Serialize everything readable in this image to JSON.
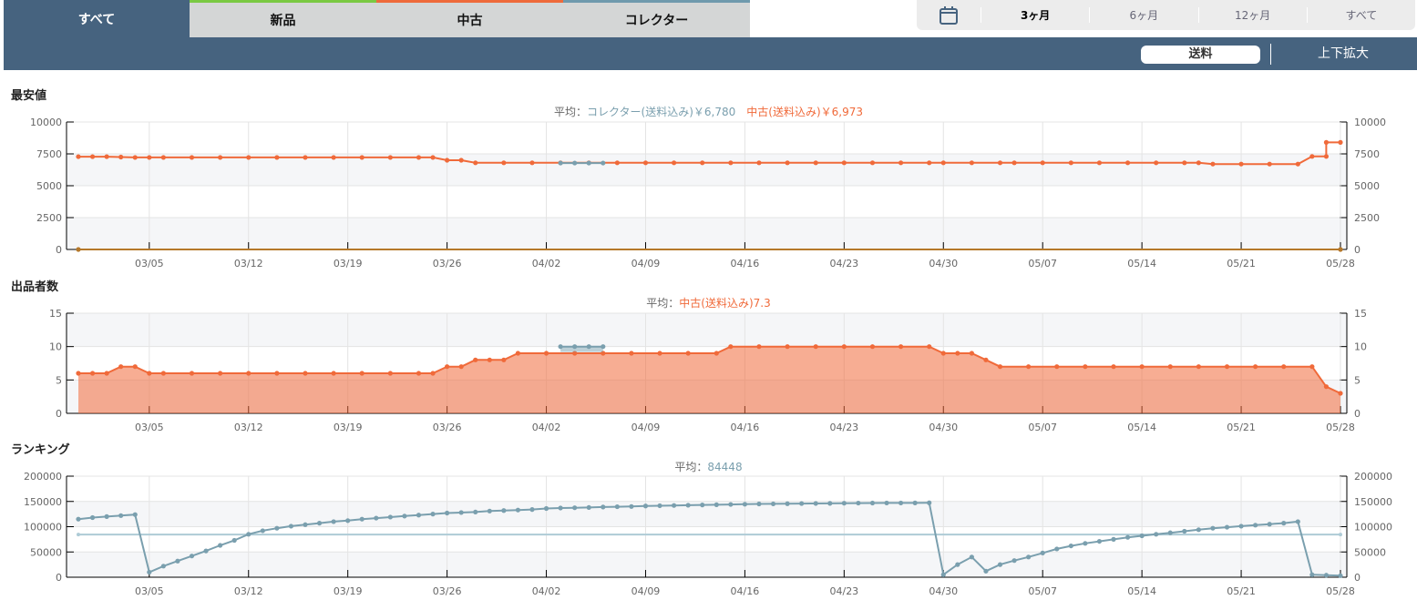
{
  "tabs": [
    {
      "label": "すべて",
      "active": true,
      "accent": ""
    },
    {
      "label": "新品",
      "active": false,
      "accent": "#7ac943"
    },
    {
      "label": "中古",
      "active": false,
      "accent": "#ee6a3b"
    },
    {
      "label": "コレクター",
      "active": false,
      "accent": "#6f9aad"
    }
  ],
  "period": {
    "icon": "calendar-icon",
    "options": [
      "3ヶ月",
      "6ヶ月",
      "12ヶ月",
      "すべて"
    ],
    "selected": "3ヶ月"
  },
  "toolbar": {
    "shipping_label": "送料",
    "zoom_label": "上下拡大"
  },
  "colors": {
    "header": "#46637f",
    "used": "#f06a3a",
    "collector": "#7a9fae",
    "new": "#b5782a"
  },
  "chart_data": [
    {
      "type": "line",
      "title": "最安値",
      "subtitle": {
        "prefix": "平均：",
        "items": [
          {
            "text": "コレクター(送料込み)￥6,780",
            "color": "#7a9fae"
          },
          {
            "text": "中古(送料込み)￥6,973",
            "color": "#f06a3a"
          }
        ]
      },
      "ylim": [
        0,
        10000
      ],
      "yticks": [
        0,
        2500,
        5000,
        7500,
        10000
      ],
      "x_ticks": [
        "03/05",
        "03/12",
        "03/19",
        "03/26",
        "04/02",
        "04/09",
        "04/16",
        "04/23",
        "04/30",
        "05/07",
        "05/14",
        "05/21",
        "05/28"
      ],
      "x_range": [
        "02/28",
        "05/28"
      ],
      "grid": true,
      "series": [
        {
          "key": "new",
          "color": "#b5782a",
          "points": [
            [
              "02/28",
              0
            ],
            [
              "05/28",
              0
            ]
          ]
        },
        {
          "key": "used",
          "color": "#f06a3a",
          "points": [
            [
              "02/28",
              7280
            ],
            [
              "03/01",
              7280
            ],
            [
              "03/02",
              7280
            ],
            [
              "03/03",
              7250
            ],
            [
              "03/04",
              7220
            ],
            [
              "03/05",
              7220
            ],
            [
              "03/06",
              7220
            ],
            [
              "03/08",
              7220
            ],
            [
              "03/10",
              7220
            ],
            [
              "03/12",
              7220
            ],
            [
              "03/14",
              7220
            ],
            [
              "03/16",
              7220
            ],
            [
              "03/18",
              7220
            ],
            [
              "03/20",
              7220
            ],
            [
              "03/22",
              7220
            ],
            [
              "03/24",
              7220
            ],
            [
              "03/25",
              7220
            ],
            [
              "03/26",
              7000
            ],
            [
              "03/27",
              7000
            ],
            [
              "03/28",
              6800
            ],
            [
              "03/30",
              6800
            ],
            [
              "04/01",
              6800
            ],
            [
              "04/03",
              6800
            ],
            [
              "04/05",
              6800
            ],
            [
              "04/07",
              6800
            ],
            [
              "04/09",
              6800
            ],
            [
              "04/11",
              6800
            ],
            [
              "04/13",
              6800
            ],
            [
              "04/15",
              6800
            ],
            [
              "04/17",
              6800
            ],
            [
              "04/19",
              6800
            ],
            [
              "04/21",
              6800
            ],
            [
              "04/23",
              6800
            ],
            [
              "04/25",
              6800
            ],
            [
              "04/27",
              6800
            ],
            [
              "04/29",
              6800
            ],
            [
              "04/30",
              6800
            ],
            [
              "05/02",
              6800
            ],
            [
              "05/04",
              6800
            ],
            [
              "05/05",
              6800
            ],
            [
              "05/07",
              6800
            ],
            [
              "05/09",
              6800
            ],
            [
              "05/11",
              6800
            ],
            [
              "05/13",
              6800
            ],
            [
              "05/15",
              6800
            ],
            [
              "05/17",
              6800
            ],
            [
              "05/18",
              6800
            ],
            [
              "05/19",
              6700
            ],
            [
              "05/21",
              6700
            ],
            [
              "05/23",
              6700
            ],
            [
              "05/25",
              6700
            ],
            [
              "05/26",
              7300
            ],
            [
              "05/27",
              7300
            ],
            [
              "05/27",
              8400
            ],
            [
              "05/28",
              8400
            ]
          ]
        },
        {
          "key": "collector",
          "color": "#7a9fae",
          "points": [
            [
              "04/03",
              6780
            ],
            [
              "04/04",
              6780
            ],
            [
              "04/05",
              6780
            ],
            [
              "04/06",
              6780
            ]
          ]
        }
      ]
    },
    {
      "type": "area",
      "title": "出品者数",
      "subtitle": {
        "prefix": "平均：",
        "items": [
          {
            "text": "中古(送料込み)7.3",
            "color": "#f06a3a"
          }
        ]
      },
      "ylim": [
        0,
        15
      ],
      "yticks": [
        0,
        5,
        10,
        15
      ],
      "x_ticks": [
        "03/05",
        "03/12",
        "03/19",
        "03/26",
        "04/02",
        "04/09",
        "04/16",
        "04/23",
        "04/30",
        "05/07",
        "05/14",
        "05/21",
        "05/28"
      ],
      "x_range": [
        "02/28",
        "05/28"
      ],
      "grid": true,
      "series": [
        {
          "key": "used",
          "color": "#f06a3a",
          "fill": true,
          "points": [
            [
              "02/28",
              6
            ],
            [
              "03/01",
              6
            ],
            [
              "03/02",
              6
            ],
            [
              "03/03",
              7
            ],
            [
              "03/04",
              7
            ],
            [
              "03/05",
              6
            ],
            [
              "03/06",
              6
            ],
            [
              "03/08",
              6
            ],
            [
              "03/10",
              6
            ],
            [
              "03/12",
              6
            ],
            [
              "03/14",
              6
            ],
            [
              "03/16",
              6
            ],
            [
              "03/18",
              6
            ],
            [
              "03/20",
              6
            ],
            [
              "03/22",
              6
            ],
            [
              "03/24",
              6
            ],
            [
              "03/25",
              6
            ],
            [
              "03/26",
              7
            ],
            [
              "03/27",
              7
            ],
            [
              "03/28",
              8
            ],
            [
              "03/29",
              8
            ],
            [
              "03/30",
              8
            ],
            [
              "03/31",
              9
            ],
            [
              "04/02",
              9
            ],
            [
              "04/04",
              9
            ],
            [
              "04/06",
              9
            ],
            [
              "04/08",
              9
            ],
            [
              "04/10",
              9
            ],
            [
              "04/12",
              9
            ],
            [
              "04/14",
              9
            ],
            [
              "04/15",
              10
            ],
            [
              "04/17",
              10
            ],
            [
              "04/19",
              10
            ],
            [
              "04/21",
              10
            ],
            [
              "04/23",
              10
            ],
            [
              "04/25",
              10
            ],
            [
              "04/27",
              10
            ],
            [
              "04/29",
              10
            ],
            [
              "04/30",
              9
            ],
            [
              "05/01",
              9
            ],
            [
              "05/02",
              9
            ],
            [
              "05/03",
              8
            ],
            [
              "05/04",
              7
            ],
            [
              "05/06",
              7
            ],
            [
              "05/08",
              7
            ],
            [
              "05/10",
              7
            ],
            [
              "05/12",
              7
            ],
            [
              "05/14",
              7
            ],
            [
              "05/16",
              7
            ],
            [
              "05/18",
              7
            ],
            [
              "05/20",
              7
            ],
            [
              "05/22",
              7
            ],
            [
              "05/24",
              7
            ],
            [
              "05/26",
              7
            ],
            [
              "05/27",
              4
            ],
            [
              "05/28",
              3
            ]
          ]
        },
        {
          "key": "collector",
          "color": "#7a9fae",
          "fill": false,
          "points": [
            [
              "04/03",
              10
            ],
            [
              "04/04",
              10
            ],
            [
              "04/05",
              10
            ],
            [
              "04/06",
              10
            ]
          ]
        }
      ]
    },
    {
      "type": "line",
      "title": "ランキング",
      "subtitle": {
        "prefix": "平均：",
        "items": [
          {
            "text": "84448",
            "color": "#7a9fae"
          }
        ]
      },
      "average": 84448,
      "ylim": [
        0,
        200000
      ],
      "yticks": [
        0,
        50000,
        100000,
        150000,
        200000
      ],
      "x_ticks": [
        "03/05",
        "03/12",
        "03/19",
        "03/26",
        "04/02",
        "04/09",
        "04/16",
        "04/23",
        "04/30",
        "05/07",
        "05/14",
        "05/21",
        "05/28"
      ],
      "x_range": [
        "02/28",
        "05/28"
      ],
      "grid": true,
      "series": [
        {
          "key": "rank",
          "color": "#7a9fae",
          "points": [
            [
              "02/28",
              115000
            ],
            [
              "03/01",
              118000
            ],
            [
              "03/02",
              120000
            ],
            [
              "03/03",
              122000
            ],
            [
              "03/04",
              124000
            ],
            [
              "03/05",
              10000
            ],
            [
              "03/06",
              22000
            ],
            [
              "03/07",
              32000
            ],
            [
              "03/08",
              42000
            ],
            [
              "03/09",
              52000
            ],
            [
              "03/10",
              63000
            ],
            [
              "03/11",
              73000
            ],
            [
              "03/12",
              85000
            ],
            [
              "03/13",
              92000
            ],
            [
              "03/14",
              97000
            ],
            [
              "03/15",
              101000
            ],
            [
              "03/16",
              104000
            ],
            [
              "03/17",
              107000
            ],
            [
              "03/18",
              110000
            ],
            [
              "03/19",
              112000
            ],
            [
              "03/20",
              115000
            ],
            [
              "03/21",
              117000
            ],
            [
              "03/22",
              119000
            ],
            [
              "03/23",
              121000
            ],
            [
              "03/24",
              123000
            ],
            [
              "03/25",
              125000
            ],
            [
              "03/26",
              127000
            ],
            [
              "03/27",
              128000
            ],
            [
              "03/28",
              129000
            ],
            [
              "03/29",
              131000
            ],
            [
              "03/30",
              132000
            ],
            [
              "03/31",
              133000
            ],
            [
              "04/01",
              134000
            ],
            [
              "04/02",
              136000
            ],
            [
              "04/03",
              137000
            ],
            [
              "04/04",
              137500
            ],
            [
              "04/05",
              138000
            ],
            [
              "04/06",
              139000
            ],
            [
              "04/07",
              139500
            ],
            [
              "04/08",
              140000
            ],
            [
              "04/09",
              141000
            ],
            [
              "04/10",
              141500
            ],
            [
              "04/11",
              142000
            ],
            [
              "04/12",
              142500
            ],
            [
              "04/13",
              143000
            ],
            [
              "04/14",
              143500
            ],
            [
              "04/15",
              144000
            ],
            [
              "04/16",
              144500
            ],
            [
              "04/17",
              145000
            ],
            [
              "04/18",
              145200
            ],
            [
              "04/19",
              145500
            ],
            [
              "04/20",
              145800
            ],
            [
              "04/21",
              146000
            ],
            [
              "04/22",
              146200
            ],
            [
              "04/23",
              146500
            ],
            [
              "04/24",
              146700
            ],
            [
              "04/25",
              146800
            ],
            [
              "04/26",
              147000
            ],
            [
              "04/27",
              147000
            ],
            [
              "04/28",
              147100
            ],
            [
              "04/29",
              147300
            ],
            [
              "04/30",
              5000
            ],
            [
              "05/01",
              25000
            ],
            [
              "05/02",
              40000
            ],
            [
              "05/03",
              12000
            ],
            [
              "05/04",
              25000
            ],
            [
              "05/05",
              33000
            ],
            [
              "05/06",
              40000
            ],
            [
              "05/07",
              48000
            ],
            [
              "05/08",
              56000
            ],
            [
              "05/09",
              62000
            ],
            [
              "05/10",
              67000
            ],
            [
              "05/11",
              71000
            ],
            [
              "05/12",
              75000
            ],
            [
              "05/13",
              79000
            ],
            [
              "05/14",
              82000
            ],
            [
              "05/15",
              85000
            ],
            [
              "05/16",
              88000
            ],
            [
              "05/17",
              91000
            ],
            [
              "05/18",
              94000
            ],
            [
              "05/19",
              97000
            ],
            [
              "05/20",
              99000
            ],
            [
              "05/21",
              101000
            ],
            [
              "05/22",
              103000
            ],
            [
              "05/23",
              105000
            ],
            [
              "05/24",
              107000
            ],
            [
              "05/25",
              110000
            ],
            [
              "05/26",
              5000
            ],
            [
              "05/27",
              4000
            ],
            [
              "05/28",
              3000
            ]
          ]
        }
      ]
    }
  ]
}
